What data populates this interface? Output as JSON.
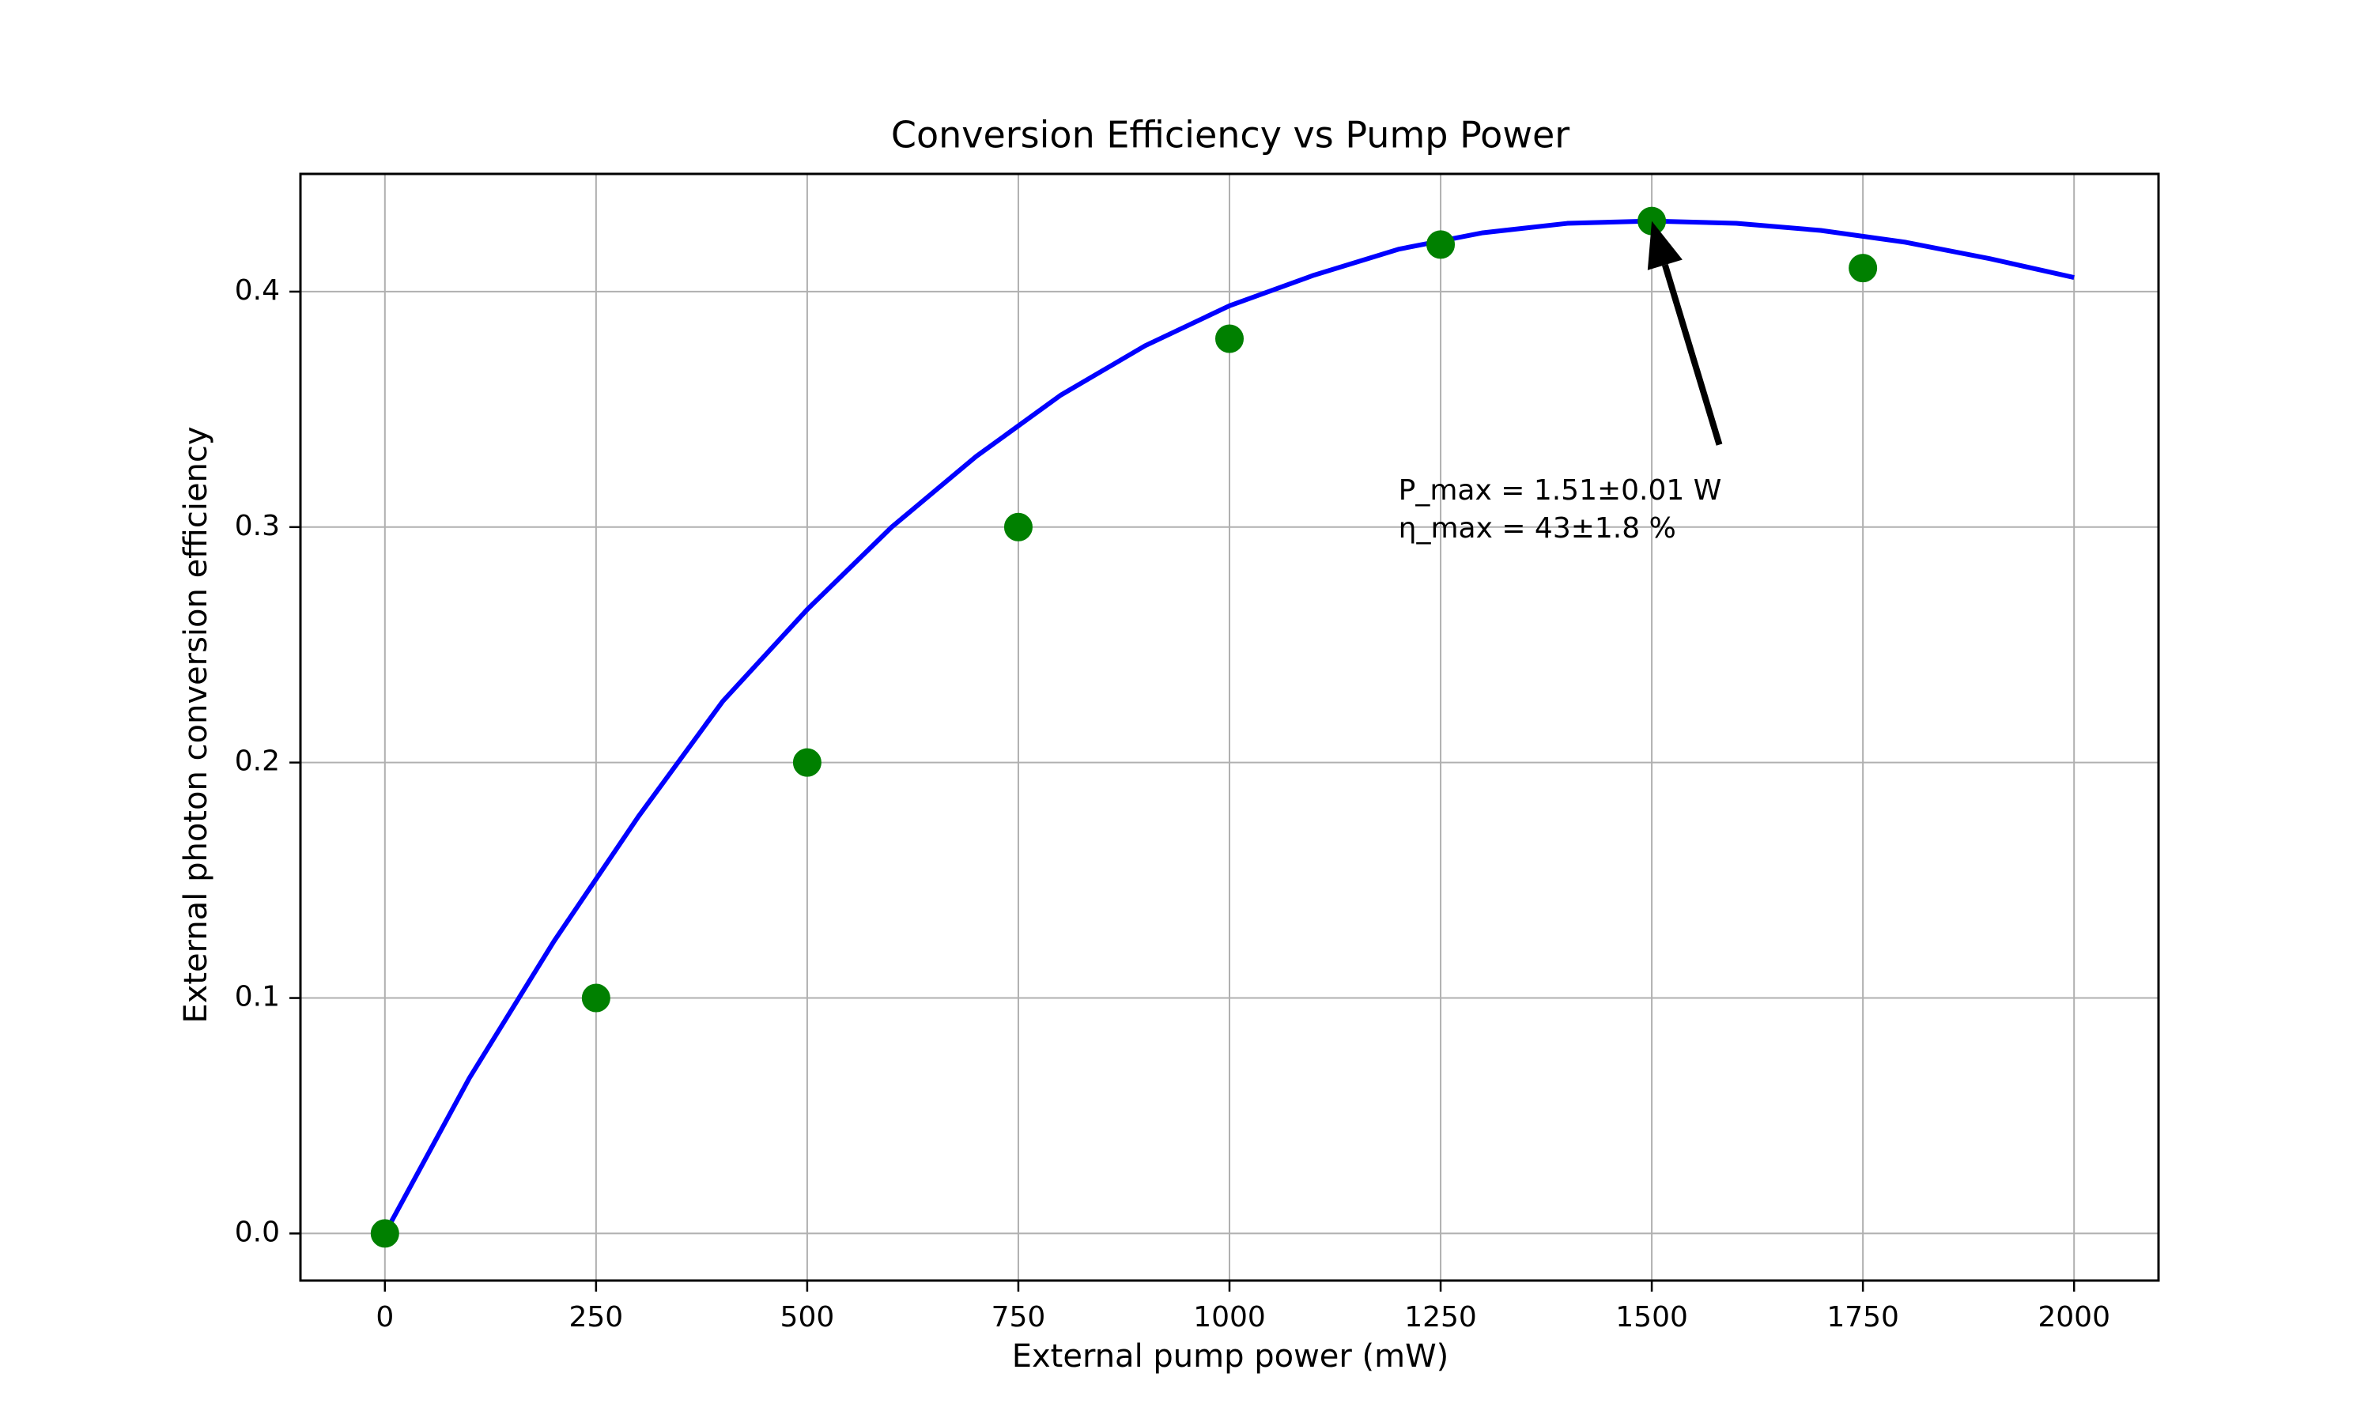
{
  "chart_data": {
    "type": "scatter",
    "title": "Conversion Efficiency vs Pump Power",
    "xlabel": "External pump power (mW)",
    "ylabel": "External photon conversion efficiency",
    "xlim": [
      -100,
      2100
    ],
    "ylim": [
      -0.02,
      0.45
    ],
    "xticks": [
      0,
      250,
      500,
      750,
      1000,
      1250,
      1500,
      1750,
      2000
    ],
    "yticks": [
      0.0,
      0.1,
      0.2,
      0.3,
      0.4
    ],
    "xtick_labels": [
      "0",
      "250",
      "500",
      "750",
      "1000",
      "1250",
      "1500",
      "1750",
      "2000"
    ],
    "ytick_labels": [
      "0.0",
      "0.1",
      "0.2",
      "0.3",
      "0.4"
    ],
    "grid": true,
    "series": [
      {
        "kind": "scatter",
        "color": "#008000",
        "x": [
          0,
          250,
          500,
          750,
          1000,
          1250,
          1500,
          1750
        ],
        "y": [
          0.0,
          0.1,
          0.2,
          0.3,
          0.38,
          0.42,
          0.43,
          0.41
        ]
      },
      {
        "kind": "line",
        "color": "#0000ff",
        "x": [
          0,
          100,
          200,
          300,
          400,
          500,
          600,
          700,
          800,
          900,
          1000,
          1100,
          1200,
          1300,
          1400,
          1500,
          1600,
          1700,
          1800,
          1900,
          2000
        ],
        "y": [
          0.0,
          0.066,
          0.124,
          0.177,
          0.226,
          0.265,
          0.3,
          0.33,
          0.356,
          0.377,
          0.394,
          0.407,
          0.418,
          0.425,
          0.429,
          0.43,
          0.429,
          0.426,
          0.421,
          0.414,
          0.406
        ]
      }
    ],
    "annotation": {
      "lines": [
        "P_max = 1.51±0.01 W",
        "η_max = 43±1.8 %"
      ],
      "text_x": 1200,
      "text_y": 0.315,
      "arrow_tail_x": 1580,
      "arrow_tail_y": 0.335,
      "arrow_head_x": 1500,
      "arrow_head_y": 0.43,
      "color": "#000000"
    },
    "colors": {
      "frame": "#000000",
      "grid": "#b0b0b0"
    }
  }
}
